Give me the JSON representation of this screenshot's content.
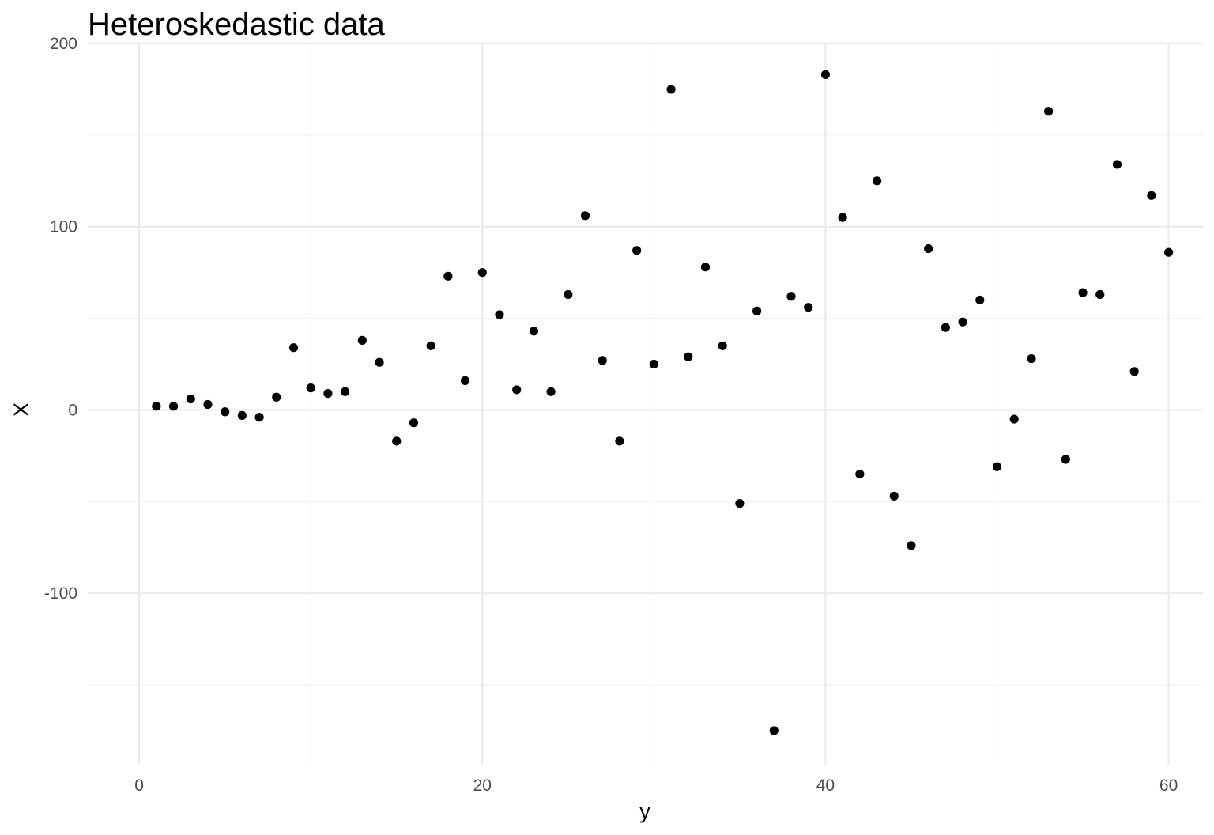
{
  "chart_data": {
    "type": "scatter",
    "title": "Heteroskedastic data",
    "xlabel": "y",
    "ylabel": "X",
    "xlim": [
      -3,
      62
    ],
    "ylim": [
      -194,
      200
    ],
    "x_ticks": [
      0,
      20,
      40,
      60
    ],
    "x_tick_labels": [
      "0",
      "20",
      "40",
      "60"
    ],
    "y_ticks": [
      -100,
      0,
      100,
      200
    ],
    "y_tick_labels": [
      "-100",
      "0",
      "100",
      "200"
    ],
    "x_minor_ticks": [
      10,
      30,
      50
    ],
    "y_minor_ticks": [
      -150,
      -50,
      50,
      150
    ],
    "grid": true,
    "legend": "none",
    "colors": {
      "point": "#000000",
      "grid_major": "#ebebeb",
      "grid_minor": "#f2f2f2",
      "tick_label": "#4d4d4d"
    },
    "x": [
      1,
      2,
      3,
      4,
      5,
      6,
      7,
      8,
      9,
      10,
      11,
      12,
      13,
      14,
      15,
      16,
      17,
      18,
      19,
      20,
      21,
      22,
      23,
      24,
      25,
      26,
      27,
      28,
      29,
      30,
      31,
      32,
      33,
      34,
      35,
      36,
      37,
      38,
      39,
      40,
      41,
      42,
      43,
      44,
      45,
      46,
      47,
      48,
      49,
      50,
      51,
      52,
      53,
      54,
      55,
      56,
      57,
      58,
      59,
      60
    ],
    "y": [
      2,
      2,
      6,
      3,
      -1,
      -3,
      -4,
      7,
      34,
      12,
      9,
      10,
      38,
      26,
      -17,
      -7,
      35,
      73,
      16,
      75,
      52,
      11,
      43,
      10,
      63,
      106,
      27,
      -17,
      87,
      25,
      175,
      29,
      78,
      35,
      -51,
      54,
      -175,
      62,
      56,
      183,
      105,
      -35,
      125,
      -47,
      -74,
      88,
      45,
      48,
      60,
      -31,
      -5,
      28,
      163,
      -27,
      64,
      63,
      134,
      21,
      117,
      86
    ]
  }
}
